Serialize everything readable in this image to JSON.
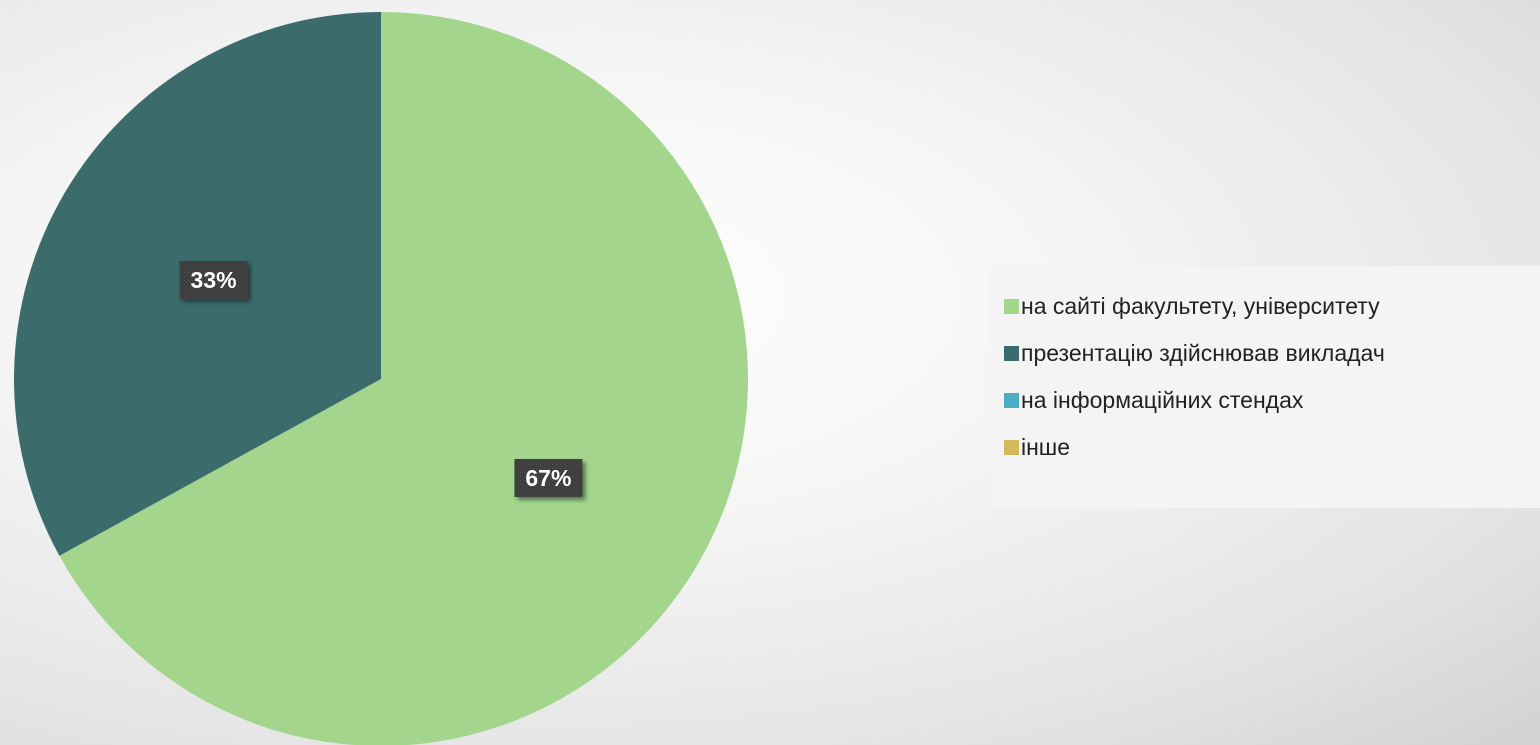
{
  "chart_data": {
    "type": "pie",
    "categories": [
      "на сайті факультету, університету",
      "презентацію здійснював викладач",
      "на інформаційних стендах",
      "інше"
    ],
    "values": [
      67,
      33,
      0,
      0
    ],
    "data_labels": [
      "67%",
      "33%",
      "",
      ""
    ],
    "colors": [
      "#a3d68c",
      "#3b6b6b",
      "#4bacc6",
      "#d4b85a"
    ],
    "start_angle": "12 o'clock",
    "direction": "clockwise",
    "legend_position": "right"
  }
}
